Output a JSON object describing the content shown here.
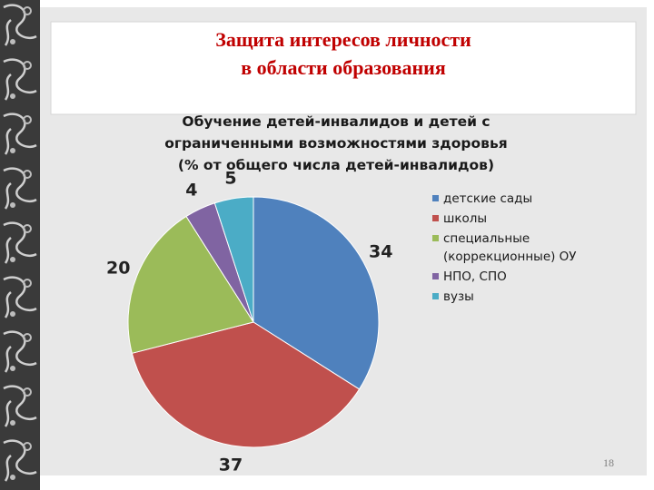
{
  "slide_title": "Защита интересов личности\nв области образования",
  "slide_number": "18",
  "chart_data": {
    "type": "pie",
    "title": "Обучение детей-инвалидов и детей с\nограниченными возможностями здоровья\n(% от общего числа детей-инвалидов)",
    "categories": [
      "детские сады",
      "школы",
      "специальные (коррекционные) ОУ",
      "НПО, СПО",
      "вузы"
    ],
    "values": [
      34,
      37,
      20,
      4,
      5
    ],
    "colors": [
      "#4f81bd",
      "#c0504d",
      "#9bbb59",
      "#8064a2",
      "#4bacc6"
    ],
    "legend": "right"
  }
}
